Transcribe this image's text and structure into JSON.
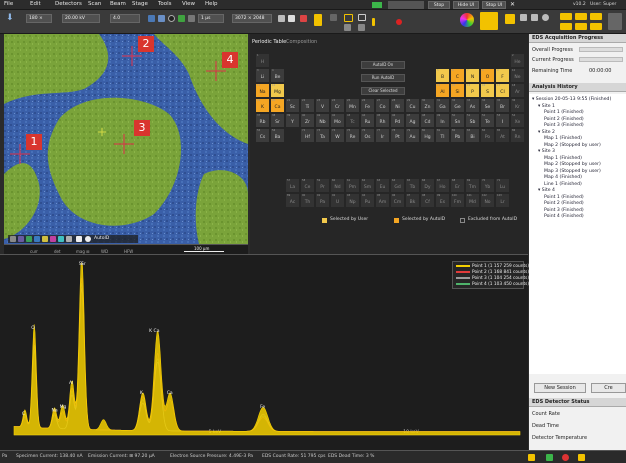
{
  "menu": [
    "File",
    "Edit",
    "Detectors",
    "Scan",
    "Beam",
    "Stage",
    "Tools",
    "View",
    "Help"
  ],
  "toolbar": {
    "beam_current": "20.00 kV",
    "spot": "4.0",
    "dwell": "1 µs",
    "resolution": "3072 × 2048",
    "stop_label": "Stop",
    "hide_ui_label": "Hide UI",
    "stop_ui_label": "Stop UI",
    "version": "v10.2",
    "user": "User: Super",
    "scan_mode": "180 ×",
    "buttons": [
      "Stop",
      "Hide UI",
      "Stop UI"
    ]
  },
  "sem": {
    "markers": [
      "1",
      "2",
      "3",
      "4"
    ],
    "labels": [
      "curr",
      "det",
      "mag ⊞",
      "WD",
      "HFW"
    ],
    "values": [
      "20 kV",
      "4.5 nA",
      "CBS",
      "250 x",
      "10.5 mm",
      "600 µm"
    ],
    "scalebar": "100 µm",
    "detector_name": "Prisma E · Color SEM",
    "autoid": "AutoID"
  },
  "periodic": {
    "tabs": [
      "Periodic Table",
      "Composition"
    ],
    "buttons": [
      "AutoID On",
      "Run AutoID",
      "Clear Selected"
    ],
    "legend": [
      "Selected by User",
      "Selected by AutoID",
      "Excluded from AutoID"
    ],
    "elements": [
      {
        "s": "H",
        "n": "1"
      },
      {
        "s": "He",
        "n": "2"
      },
      {
        "s": "Li",
        "n": "3"
      },
      {
        "s": "Be",
        "n": "4"
      },
      {
        "s": "B",
        "n": "5"
      },
      {
        "s": "C",
        "n": "6"
      },
      {
        "s": "N",
        "n": "7"
      },
      {
        "s": "O",
        "n": "8"
      },
      {
        "s": "F",
        "n": "9"
      },
      {
        "s": "Ne",
        "n": "10"
      },
      {
        "s": "Na",
        "n": "11"
      },
      {
        "s": "Mg",
        "n": "12"
      },
      {
        "s": "Al",
        "n": "13"
      },
      {
        "s": "Si",
        "n": "14"
      },
      {
        "s": "P",
        "n": "15"
      },
      {
        "s": "S",
        "n": "16"
      },
      {
        "s": "Cl",
        "n": "17"
      },
      {
        "s": "Ar",
        "n": "18"
      },
      {
        "s": "K",
        "n": "19"
      },
      {
        "s": "Ca",
        "n": "20"
      },
      {
        "s": "Sc",
        "n": "21"
      },
      {
        "s": "Ti",
        "n": "22"
      },
      {
        "s": "V",
        "n": "23"
      },
      {
        "s": "Cr",
        "n": "24"
      },
      {
        "s": "Mn",
        "n": "25"
      },
      {
        "s": "Fe",
        "n": "26"
      },
      {
        "s": "Co",
        "n": "27"
      },
      {
        "s": "Ni",
        "n": "28"
      },
      {
        "s": "Cu",
        "n": "29"
      },
      {
        "s": "Zn",
        "n": "30"
      },
      {
        "s": "Ga",
        "n": "31"
      },
      {
        "s": "Ge",
        "n": "32"
      },
      {
        "s": "As",
        "n": "33"
      },
      {
        "s": "Se",
        "n": "34"
      },
      {
        "s": "Br",
        "n": "35"
      },
      {
        "s": "Kr",
        "n": "36"
      },
      {
        "s": "Rb",
        "n": "37"
      },
      {
        "s": "Sr",
        "n": "38"
      },
      {
        "s": "Y",
        "n": "39"
      },
      {
        "s": "Zr",
        "n": "40"
      },
      {
        "s": "Nb",
        "n": "41"
      },
      {
        "s": "Mo",
        "n": "42"
      },
      {
        "s": "Tc",
        "n": "43"
      },
      {
        "s": "Ru",
        "n": "44"
      },
      {
        "s": "Rh",
        "n": "45"
      },
      {
        "s": "Pd",
        "n": "46"
      },
      {
        "s": "Ag",
        "n": "47"
      },
      {
        "s": "Cd",
        "n": "48"
      },
      {
        "s": "In",
        "n": "49"
      },
      {
        "s": "Sn",
        "n": "50"
      },
      {
        "s": "Sb",
        "n": "51"
      },
      {
        "s": "Te",
        "n": "52"
      },
      {
        "s": "I",
        "n": "53"
      },
      {
        "s": "Xe",
        "n": "54"
      },
      {
        "s": "Cs",
        "n": "55"
      },
      {
        "s": "Ba",
        "n": "56"
      },
      {
        "s": "Hf",
        "n": "72"
      },
      {
        "s": "Ta",
        "n": "73"
      },
      {
        "s": "W",
        "n": "74"
      },
      {
        "s": "Re",
        "n": "75"
      },
      {
        "s": "Os",
        "n": "76"
      },
      {
        "s": "Ir",
        "n": "77"
      },
      {
        "s": "Pt",
        "n": "78"
      },
      {
        "s": "Au",
        "n": "79"
      },
      {
        "s": "Hg",
        "n": "80"
      },
      {
        "s": "Tl",
        "n": "81"
      },
      {
        "s": "Pb",
        "n": "82"
      },
      {
        "s": "Bi",
        "n": "83"
      },
      {
        "s": "Po",
        "n": "84"
      },
      {
        "s": "At",
        "n": "85"
      },
      {
        "s": "Rn",
        "n": "86"
      },
      {
        "s": "La",
        "n": "57"
      },
      {
        "s": "Ce",
        "n": "58"
      },
      {
        "s": "Pr",
        "n": "59"
      },
      {
        "s": "Nd",
        "n": "60"
      },
      {
        "s": "Pm",
        "n": "61"
      },
      {
        "s": "Sm",
        "n": "62"
      },
      {
        "s": "Eu",
        "n": "63"
      },
      {
        "s": "Gd",
        "n": "64"
      },
      {
        "s": "Tb",
        "n": "65"
      },
      {
        "s": "Dy",
        "n": "66"
      },
      {
        "s": "Ho",
        "n": "67"
      },
      {
        "s": "Er",
        "n": "68"
      },
      {
        "s": "Tm",
        "n": "69"
      },
      {
        "s": "Yb",
        "n": "70"
      },
      {
        "s": "Lu",
        "n": "71"
      },
      {
        "s": "Ac",
        "n": "89"
      },
      {
        "s": "Th",
        "n": "90"
      },
      {
        "s": "Pa",
        "n": "91"
      },
      {
        "s": "U",
        "n": "92"
      },
      {
        "s": "Np",
        "n": "93"
      },
      {
        "s": "Pu",
        "n": "94"
      },
      {
        "s": "Am",
        "n": "95"
      },
      {
        "s": "Cm",
        "n": "96"
      },
      {
        "s": "Bk",
        "n": "97"
      },
      {
        "s": "Cf",
        "n": "98"
      },
      {
        "s": "Es",
        "n": "99"
      },
      {
        "s": "Fm",
        "n": "100"
      },
      {
        "s": "Md",
        "n": "101"
      },
      {
        "s": "No",
        "n": "102"
      },
      {
        "s": "Lr",
        "n": "103"
      }
    ],
    "selected_user": [
      "B",
      "C",
      "N",
      "O",
      "F",
      "Na",
      "Mg",
      "K",
      "Ca",
      "Al",
      "Si",
      "P",
      "S",
      "Cl"
    ],
    "selected_autoid": [
      "C",
      "O",
      "Na",
      "K",
      "Ca",
      "Al",
      "Si"
    ]
  },
  "chart_data": {
    "type": "line",
    "xlabel": "",
    "ylabel": "",
    "x_ticks": [
      "5 keV",
      "10 keV"
    ],
    "xlim": [
      0,
      13
    ],
    "ylim": [
      0,
      100
    ],
    "peak_labels": [
      {
        "label": "Si",
        "x": 1.74
      },
      {
        "label": "O",
        "x": 0.52
      },
      {
        "label": "K Ca",
        "x": 3.55
      },
      {
        "label": "Ca",
        "x": 4.0
      },
      {
        "label": "Al",
        "x": 1.49
      },
      {
        "label": "Na",
        "x": 1.04
      },
      {
        "label": "Mg",
        "x": 1.25
      },
      {
        "label": "C",
        "x": 0.28
      },
      {
        "label": "Fe",
        "x": 6.4
      },
      {
        "label": "K",
        "x": 3.31
      },
      {
        "label": "Sr",
        "x": 1.8
      }
    ],
    "series": [
      {
        "name": "Point 1 (1 157 259 counts)",
        "color": "#f5d000",
        "peaks": [
          [
            0.28,
            10
          ],
          [
            0.52,
            60
          ],
          [
            1.04,
            12
          ],
          [
            1.25,
            14
          ],
          [
            1.49,
            28
          ],
          [
            1.74,
            100
          ],
          [
            2.3,
            6
          ],
          [
            3.31,
            22
          ],
          [
            3.69,
            58
          ],
          [
            4.01,
            22
          ],
          [
            6.4,
            14
          ]
        ]
      },
      {
        "name": "Point 2 (1 168 841 counts)",
        "color": "#e23b3b",
        "peaks": [
          [
            0.28,
            6
          ],
          [
            0.52,
            52
          ],
          [
            1.04,
            10
          ],
          [
            1.25,
            10
          ],
          [
            1.49,
            24
          ],
          [
            1.74,
            88
          ],
          [
            3.31,
            20
          ],
          [
            3.69,
            45
          ],
          [
            4.01,
            18
          ],
          [
            6.4,
            8
          ]
        ]
      },
      {
        "name": "Point 3 (1 104 254 counts)",
        "color": "#9a9a9a",
        "peaks": [
          [
            0.28,
            8
          ],
          [
            0.52,
            48
          ],
          [
            1.04,
            8
          ],
          [
            1.49,
            20
          ],
          [
            1.74,
            82
          ],
          [
            3.31,
            16
          ],
          [
            3.69,
            40
          ],
          [
            6.4,
            10
          ]
        ]
      },
      {
        "name": "Point 4 (1 103 450 counts)",
        "color": "#4fb36b",
        "peaks": [
          [
            0.28,
            7
          ],
          [
            0.52,
            45
          ],
          [
            1.04,
            9
          ],
          [
            1.49,
            22
          ],
          [
            1.74,
            85
          ],
          [
            3.31,
            18
          ],
          [
            3.69,
            42
          ],
          [
            6.4,
            9
          ]
        ]
      }
    ],
    "legend_position": "top-right"
  },
  "right_panel": {
    "acq_title": "EDS Acquisition Progress",
    "overall": "Overall Progress",
    "current": "Current Progress",
    "remaining": "Remaining Time",
    "remaining_value": "00:00:00",
    "history_title": "Analysis History",
    "tree": [
      {
        "t": "▾ Session 20-05-13 9:55 (Finished)",
        "l": 0
      },
      {
        "t": "▾ Site 1",
        "l": 1
      },
      {
        "t": "Point 1 (Finished)",
        "l": 2
      },
      {
        "t": "Point 2 (Finished)",
        "l": 2
      },
      {
        "t": "Point 3 (Finished)",
        "l": 2
      },
      {
        "t": "▾ Site 2",
        "l": 1
      },
      {
        "t": "Map 1 (Finished)",
        "l": 2
      },
      {
        "t": "Map 2 (Stopped by user)",
        "l": 2
      },
      {
        "t": "▾ Site 3",
        "l": 1
      },
      {
        "t": "Map 1 (Finished)",
        "l": 2
      },
      {
        "t": "Map 2 (Stopped by user)",
        "l": 2
      },
      {
        "t": "Map 3 (Stopped by user)",
        "l": 2
      },
      {
        "t": "Map 4 (Finished)",
        "l": 2
      },
      {
        "t": "Line 1 (Finished)",
        "l": 2
      },
      {
        "t": "▾ Site 4",
        "l": 1
      },
      {
        "t": "Point 1 (Finished)",
        "l": 2
      },
      {
        "t": "Point 2 (Finished)",
        "l": 2
      },
      {
        "t": "Point 3 (Finished)",
        "l": 2
      },
      {
        "t": "Point 4 (Finished)",
        "l": 2
      }
    ],
    "new_session": "New Session",
    "create": "Cre",
    "detector_title": "EDS Detector Status",
    "count_rate": "Count Rate",
    "dead_time": "Dead Time",
    "detector_temp": "Detector Temperature"
  },
  "status": {
    "pressure": "Pa",
    "specimen_current": "Specimen Current:  138.40 nA",
    "emission_current": "Emission Current:  ⊞ 97.20 µA",
    "source_pressure": "Electron Source Pressure:  4.49E-3 Pa",
    "count_rate": "EDS Count Rate:   51 795 cps",
    "dead_time": "EDS Dead Time:   3 %"
  },
  "colors": {
    "accent": "#f5a623",
    "user_sel": "#f2c94c",
    "autoid_sel": "#f5a623",
    "marker": "#d9352e"
  }
}
